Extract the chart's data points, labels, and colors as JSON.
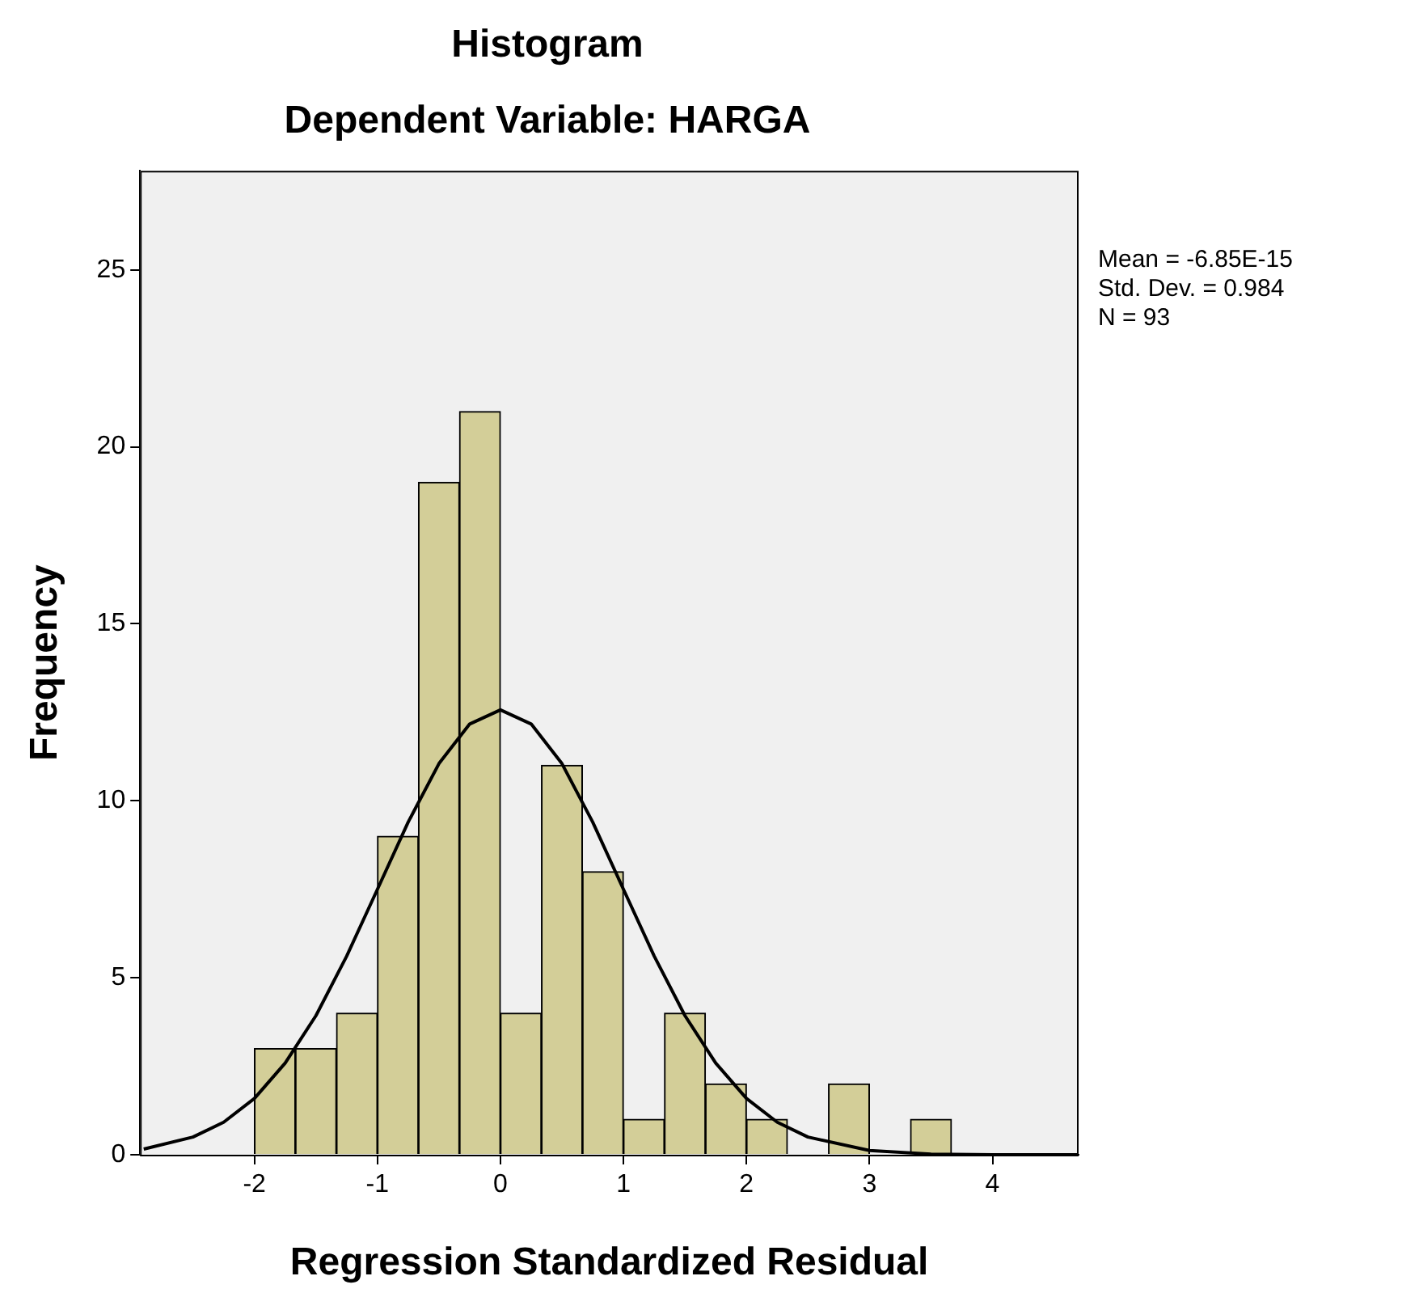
{
  "chart_data": {
    "type": "histogram",
    "title": "Histogram",
    "subtitle": "Dependent Variable: HARGA",
    "xlabel": "Regression Standardized Residual",
    "ylabel": "Frequency",
    "bins": [
      -2,
      -1.667,
      -1.333,
      -1,
      -0.667,
      -0.333,
      0,
      0.333,
      0.667,
      1,
      1.333,
      1.667,
      2,
      2.333,
      2.667,
      3,
      3.333,
      3.667
    ],
    "values": [
      3,
      3,
      4,
      9,
      19,
      21,
      4,
      11,
      8,
      1,
      4,
      2,
      1,
      0,
      2,
      0,
      1
    ],
    "color": "#d3ce98",
    "series": [
      {
        "type": "line",
        "color": "#000000",
        "x": [
          -2.9,
          -2.5,
          -2.25,
          -2,
          -1.75,
          -1.5,
          -1.25,
          -1,
          -0.75,
          -0.5,
          -0.25,
          0,
          0.25,
          0.5,
          0.75,
          1,
          1.25,
          1.5,
          1.75,
          2,
          2.25,
          2.5,
          3,
          3.5,
          4,
          4.7
        ],
        "values": [
          0.16,
          0.5,
          0.92,
          1.59,
          2.59,
          3.93,
          5.61,
          7.5,
          9.4,
          11.05,
          12.17,
          12.57,
          12.17,
          11.05,
          9.4,
          7.5,
          5.61,
          3.93,
          2.59,
          1.59,
          0.92,
          0.5,
          0.12,
          0.02,
          0,
          0
        ]
      }
    ],
    "xlim": [
      -2.93,
      4.7
    ],
    "xticks": [
      -2,
      -1,
      0,
      1,
      2,
      3,
      4
    ],
    "ylim": [
      0,
      27.8
    ],
    "yticks": [
      0,
      5,
      10,
      15,
      20,
      25
    ],
    "grid": false,
    "legend": false,
    "marker": "none",
    "annotations": [
      "Mean = -6.85E-15",
      "Std. Dev. = 0.984",
      "N = 93"
    ]
  }
}
